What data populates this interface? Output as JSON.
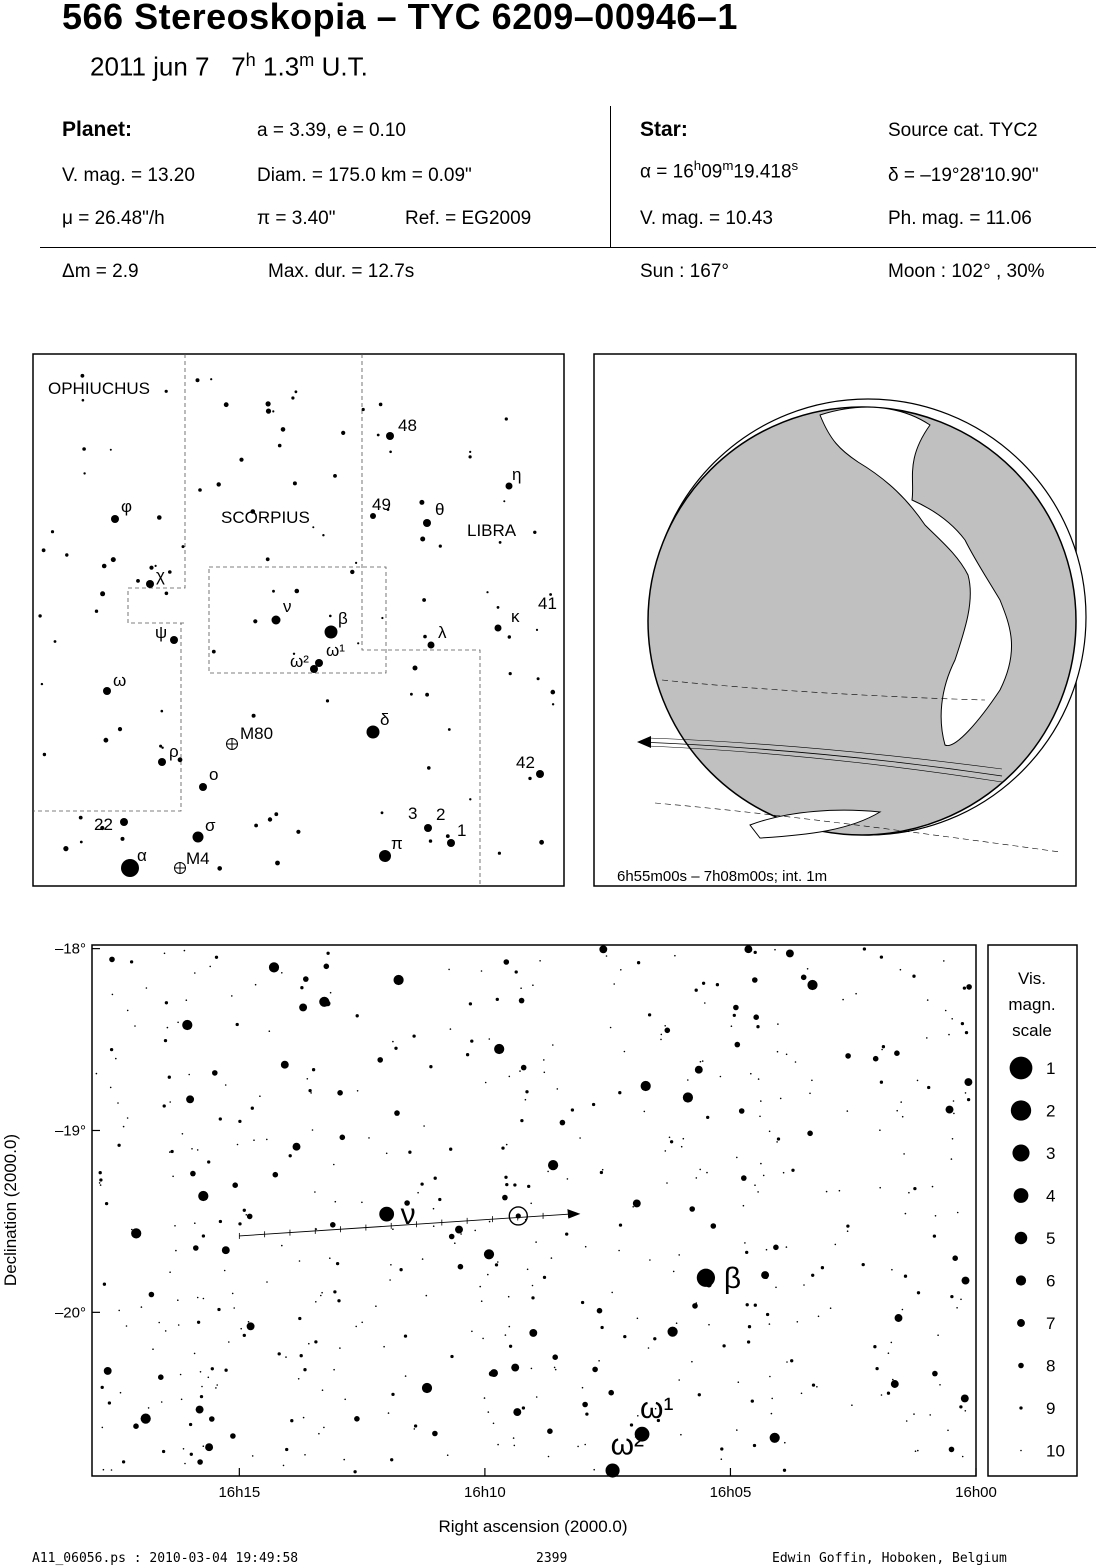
{
  "header": {
    "title": "566 Stereoskopia  –  TYC 6209–00946–1",
    "date": "2011 jun  7",
    "time_h": "7",
    "time_m": "1.3",
    "time_suffix": "U.T."
  },
  "planet": {
    "label": "Planet:",
    "orbit": "a = 3.39, e = 0.10",
    "vmag": "V. mag. = 13.20",
    "diam": "Diam. = 175.0 km = 0.09\"",
    "mu": "μ =  26.48\"/h",
    "pi": "π =  3.40\"",
    "ref": "Ref. = EG2009"
  },
  "star": {
    "label": "Star:",
    "source": "Source cat.  TYC2",
    "alpha_prefix": "α = 16",
    "alpha_h_unit": "h",
    "alpha_m": "09",
    "alpha_m_unit": "m",
    "alpha_s": "19.418",
    "alpha_s_unit": "s",
    "delta": "δ = –19°28'10.90\"",
    "vmag": "V. mag. = 10.43",
    "phmag": "Ph. mag. = 11.06"
  },
  "event": {
    "dm": "Δm = 2.9",
    "maxdur": "Max. dur. = 12.7s",
    "sun": "Sun : 167°",
    "moon": "Moon : 102° , 30%"
  },
  "finder": {
    "constellations": [
      "OPHIUCHUS",
      "SCORPIUS",
      "LIBRA"
    ],
    "labels": [
      {
        "t": "48",
        "x": 398,
        "y": 431
      },
      {
        "t": "η",
        "x": 512,
        "y": 480
      },
      {
        "t": "49",
        "x": 372,
        "y": 510
      },
      {
        "t": "θ",
        "x": 435,
        "y": 515
      },
      {
        "t": "φ",
        "x": 121,
        "y": 512
      },
      {
        "t": "χ",
        "x": 156,
        "y": 581
      },
      {
        "t": "ν",
        "x": 283,
        "y": 612
      },
      {
        "t": "β",
        "x": 338,
        "y": 624
      },
      {
        "t": "λ",
        "x": 438,
        "y": 638
      },
      {
        "t": "κ",
        "x": 511,
        "y": 622
      },
      {
        "t": "41",
        "x": 538,
        "y": 609
      },
      {
        "t": "ψ",
        "x": 155,
        "y": 638
      },
      {
        "t": "ω²",
        "x": 290,
        "y": 667
      },
      {
        "t": "ω¹",
        "x": 326,
        "y": 656
      },
      {
        "t": "ω",
        "x": 113,
        "y": 686
      },
      {
        "t": "δ",
        "x": 380,
        "y": 725
      },
      {
        "t": "M80",
        "x": 240,
        "y": 739
      },
      {
        "t": "ρ",
        "x": 169,
        "y": 757
      },
      {
        "t": "42",
        "x": 516,
        "y": 768
      },
      {
        "t": "ο",
        "x": 209,
        "y": 780
      },
      {
        "t": "3",
        "x": 408,
        "y": 819
      },
      {
        "t": "2",
        "x": 436,
        "y": 820
      },
      {
        "t": "1",
        "x": 457,
        "y": 836
      },
      {
        "t": "22",
        "x": 94,
        "y": 830
      },
      {
        "t": "σ",
        "x": 205,
        "y": 831
      },
      {
        "t": "π",
        "x": 391,
        "y": 849
      },
      {
        "t": "α",
        "x": 137,
        "y": 861
      },
      {
        "t": "M4",
        "x": 186,
        "y": 864
      }
    ]
  },
  "globe": {
    "caption": "6h55m00s –  7h08m00s; int.  1m"
  },
  "chart_data": {
    "type": "scatter",
    "xlabel": "Right ascension (2000.0)",
    "ylabel": "Declination (2000.0)",
    "x_ticks": [
      "16h15",
      "16h10",
      "16h05",
      "16h00"
    ],
    "y_ticks": [
      "–18°",
      "–19°",
      "–20°"
    ],
    "x_range_min": [
      16.0,
      16.3
    ],
    "y_range_deg": [
      -20.9,
      -17.98
    ],
    "named_stars": [
      {
        "name": "ν",
        "ra_min": 12.0,
        "dec": -19.46,
        "mag": 4
      },
      {
        "name": "β",
        "ra_min": 5.5,
        "dec": -19.81,
        "mag": 2.5
      },
      {
        "name": "ω¹",
        "ra_min": 6.8,
        "dec": -20.67,
        "mag": 4
      },
      {
        "name": "ω²",
        "ra_min": 7.4,
        "dec": -20.87,
        "mag": 4.3
      }
    ],
    "target_star": {
      "ra_min": 9.32,
      "dec": -19.47
    },
    "path": {
      "start_ra_min": 15.0,
      "start_dec": -19.58,
      "end_ra_min": 8.3,
      "end_dec": -19.46
    },
    "legend": {
      "title": [
        "Vis.",
        "magn.",
        "scale"
      ],
      "mags": [
        1,
        2,
        3,
        4,
        5,
        6,
        7,
        8,
        9,
        10
      ]
    }
  },
  "footer": {
    "file": "A11_06056.ps : 2010-03-04 19:49:58",
    "num": "2399",
    "author": "Edwin Goffin, Hoboken, Belgium"
  }
}
